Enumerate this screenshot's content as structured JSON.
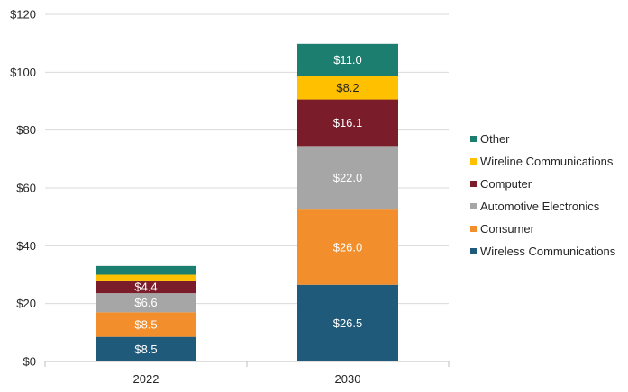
{
  "chart_data": {
    "type": "bar",
    "stacked": true,
    "categories": [
      "2022",
      "2030"
    ],
    "ylim": [
      0,
      120
    ],
    "yticks": [
      0,
      20,
      40,
      60,
      80,
      100,
      120
    ],
    "ytick_labels": [
      "$0",
      "$20",
      "$40",
      "$60",
      "$80",
      "$100",
      "$120"
    ],
    "grid": "horizontal",
    "legend_position": "right",
    "series": [
      {
        "name": "Wireless Communications",
        "color": "#1f5a7a",
        "values": [
          8.5,
          26.5
        ],
        "labels": [
          "$8.5",
          "$26.5"
        ]
      },
      {
        "name": "Consumer",
        "color": "#f28e2b",
        "values": [
          8.5,
          26.0
        ],
        "labels": [
          "$8.5",
          "$26.0"
        ]
      },
      {
        "name": "Automotive Electronics",
        "color": "#a6a6a6",
        "values": [
          6.6,
          22.0
        ],
        "labels": [
          "$6.6",
          "$22.0"
        ]
      },
      {
        "name": "Computer",
        "color": "#7b1c2a",
        "values": [
          4.4,
          16.1
        ],
        "labels": [
          "$4.4",
          "$16.1"
        ]
      },
      {
        "name": "Wireline Communications",
        "color": "#ffc000",
        "values": [
          2.0,
          8.2
        ],
        "labels": [
          "",
          "$8.2"
        ]
      },
      {
        "name": "Other",
        "color": "#1b7e6e",
        "values": [
          3.0,
          11.0
        ],
        "labels": [
          "",
          "$11.0"
        ]
      }
    ]
  }
}
